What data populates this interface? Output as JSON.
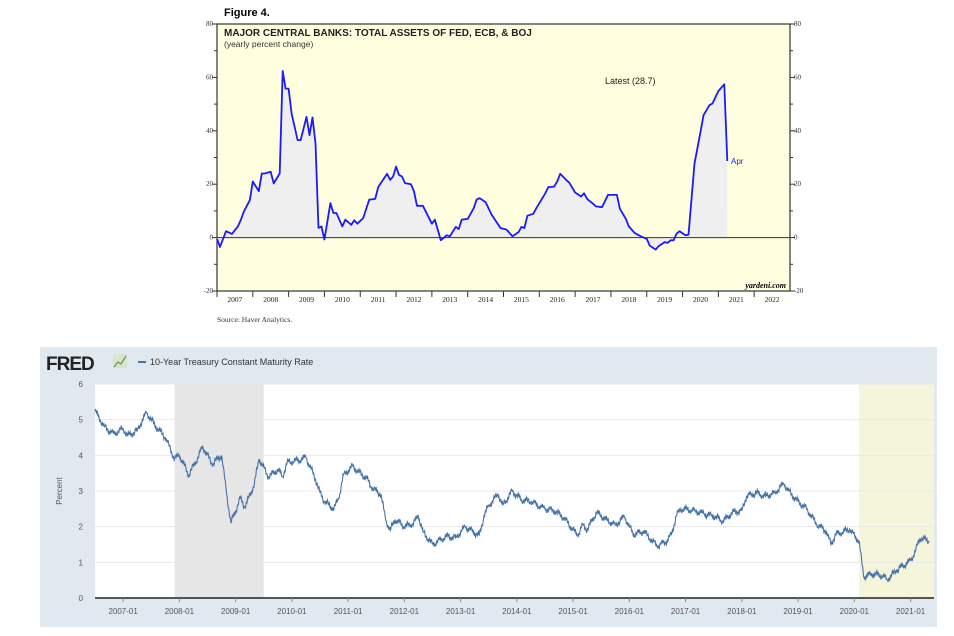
{
  "chart_data": [
    {
      "type": "area",
      "figure_label": "Figure 4.",
      "title": "MAJOR CENTRAL BANKS: TOTAL ASSETS OF FED, ECB, & BOJ",
      "subtitle": "(yearly percent change)",
      "annotation_latest": "Latest (28.7)",
      "annotation_end": "Apr",
      "watermark": "yardeni.com",
      "source": "Source: Haver Analytics.",
      "ylim": [
        -20,
        80
      ],
      "yticks": [
        -20,
        0,
        20,
        40,
        60,
        80
      ],
      "xlim": [
        "2007-01",
        "2023-01"
      ],
      "xtick_labels": [
        "2007",
        "2008",
        "2009",
        "2010",
        "2011",
        "2012",
        "2013",
        "2014",
        "2015",
        "2016",
        "2017",
        "2018",
        "2019",
        "2020",
        "2021",
        "2022"
      ],
      "grid": false,
      "colors": {
        "line": "#1a1aff",
        "fill": "#efefef",
        "background": "#ffffe0"
      },
      "points": [
        [
          "2007-01",
          -0.5
        ],
        [
          "2007-02",
          -3.5
        ],
        [
          "2007-04",
          2.4
        ],
        [
          "2007-06",
          1.4
        ],
        [
          "2007-08",
          4.2
        ],
        [
          "2007-09",
          6.7
        ],
        [
          "2007-10",
          9.8
        ],
        [
          "2007-12",
          14
        ],
        [
          "2008-01",
          21
        ],
        [
          "2008-03",
          17.4
        ],
        [
          "2008-04",
          24
        ],
        [
          "2008-05",
          24
        ],
        [
          "2008-07",
          24.7
        ],
        [
          "2008-08",
          20.3
        ],
        [
          "2008-10",
          24
        ],
        [
          "2008-11",
          62.4
        ],
        [
          "2008-12",
          55.8
        ],
        [
          "2009-01",
          55.8
        ],
        [
          "2009-02",
          46.5
        ],
        [
          "2009-04",
          36.5
        ],
        [
          "2009-05",
          36.5
        ],
        [
          "2009-07",
          45.2
        ],
        [
          "2009-08",
          38.4
        ],
        [
          "2009-09",
          45
        ],
        [
          "2009-10",
          35.3
        ],
        [
          "2009-11",
          3.6
        ],
        [
          "2009-12",
          4.2
        ],
        [
          "2010-01",
          -0.7
        ],
        [
          "2010-03",
          12.9
        ],
        [
          "2010-04",
          9.2
        ],
        [
          "2010-05",
          9.2
        ],
        [
          "2010-07",
          4.2
        ],
        [
          "2010-08",
          6.7
        ],
        [
          "2010-10",
          4.8
        ],
        [
          "2010-11",
          6.5
        ],
        [
          "2010-12",
          5.2
        ],
        [
          "2011-02",
          7.3
        ],
        [
          "2011-04",
          14.2
        ],
        [
          "2011-06",
          14.5
        ],
        [
          "2011-07",
          18.9
        ],
        [
          "2011-10",
          23.9
        ],
        [
          "2011-11",
          21.6
        ],
        [
          "2011-12",
          22.9
        ],
        [
          "2012-01",
          26.6
        ],
        [
          "2012-02",
          23.5
        ],
        [
          "2012-03",
          22.9
        ],
        [
          "2012-04",
          20.4
        ],
        [
          "2012-06",
          20
        ],
        [
          "2012-07",
          17.3
        ],
        [
          "2012-08",
          11.9
        ],
        [
          "2012-10",
          11.9
        ],
        [
          "2013-01",
          5.2
        ],
        [
          "2013-02",
          6.7
        ],
        [
          "2013-04",
          -1
        ],
        [
          "2013-06",
          0.9
        ],
        [
          "2013-07",
          0.5
        ],
        [
          "2013-09",
          4
        ],
        [
          "2013-10",
          3.2
        ],
        [
          "2013-11",
          6.7
        ],
        [
          "2014-01",
          7
        ],
        [
          "2014-03",
          11
        ],
        [
          "2014-04",
          14.2
        ],
        [
          "2014-05",
          14.8
        ],
        [
          "2014-07",
          13.3
        ],
        [
          "2014-09",
          8.6
        ],
        [
          "2014-12",
          3.6
        ],
        [
          "2015-02",
          3
        ],
        [
          "2015-04",
          0.5
        ],
        [
          "2015-06",
          2
        ],
        [
          "2015-07",
          4
        ],
        [
          "2015-08",
          3.6
        ],
        [
          "2015-09",
          8.2
        ],
        [
          "2015-11",
          8.9
        ],
        [
          "2015-12",
          11
        ],
        [
          "2016-03",
          16.6
        ],
        [
          "2016-04",
          18.9
        ],
        [
          "2016-06",
          19.1
        ],
        [
          "2016-07",
          21
        ],
        [
          "2016-08",
          23.9
        ],
        [
          "2016-10",
          21.6
        ],
        [
          "2016-11",
          20.6
        ],
        [
          "2017-01",
          16.9
        ],
        [
          "2017-03",
          15.4
        ],
        [
          "2017-04",
          16.6
        ],
        [
          "2017-05",
          14.5
        ],
        [
          "2017-07",
          12.7
        ],
        [
          "2017-08",
          11.7
        ],
        [
          "2017-10",
          11.4
        ],
        [
          "2017-12",
          16
        ],
        [
          "2018-03",
          16
        ],
        [
          "2018-04",
          10.8
        ],
        [
          "2018-06",
          7
        ],
        [
          "2018-07",
          4.2
        ],
        [
          "2018-09",
          1.7
        ],
        [
          "2018-11",
          0.5
        ],
        [
          "2019-01",
          -0.5
        ],
        [
          "2019-02",
          -3
        ],
        [
          "2019-04",
          -4.5
        ],
        [
          "2019-05",
          -3.2
        ],
        [
          "2019-07",
          -1.7
        ],
        [
          "2019-08",
          -2
        ],
        [
          "2019-09",
          -1
        ],
        [
          "2019-10",
          -1
        ],
        [
          "2019-11",
          1.5
        ],
        [
          "2019-12",
          2.4
        ],
        [
          "2020-02",
          0.9
        ],
        [
          "2020-03",
          1.1
        ],
        [
          "2020-05",
          27.8
        ],
        [
          "2020-07",
          39.6
        ],
        [
          "2020-08",
          45.8
        ],
        [
          "2020-10",
          49.6
        ],
        [
          "2020-11",
          50.2
        ],
        [
          "2021-01",
          54.9
        ],
        [
          "2021-03",
          57.4
        ],
        [
          "2021-04",
          28.7
        ]
      ]
    },
    {
      "type": "line",
      "logo": "FRED",
      "legend": "10-Year Treasury Constant Maturity Rate",
      "ylabel": "Percent",
      "ylim": [
        0,
        6
      ],
      "yticks": [
        0,
        1,
        2,
        3,
        4,
        5,
        6
      ],
      "xtick_labels": [
        "2007-01",
        "2008-01",
        "2009-01",
        "2010-01",
        "2011-01",
        "2012-01",
        "2013-01",
        "2014-01",
        "2015-01",
        "2016-01",
        "2017-01",
        "2018-01",
        "2019-01",
        "2020-01",
        "2021-01"
      ],
      "xlim": [
        "2006-07",
        "2021-05"
      ],
      "grid": true,
      "recessions": [
        [
          "2007-12",
          "2009-06"
        ],
        [
          "2020-02",
          "2021-05"
        ]
      ],
      "colors": {
        "line": "#4572a7",
        "recession_1": "#e6e6e6",
        "recession_2": "#f5f5dc",
        "frame": "#e1e9f0"
      },
      "series": [
        {
          "name": "10-Year Treasury Constant Maturity Rate",
          "points": [
            [
              "2006-07",
              5.25
            ],
            [
              "2006-09",
              4.8
            ],
            [
              "2006-11",
              4.6
            ],
            [
              "2007-01",
              4.75
            ],
            [
              "2007-02",
              4.55
            ],
            [
              "2007-04",
              4.7
            ],
            [
              "2007-06",
              5.2
            ],
            [
              "2007-08",
              4.8
            ],
            [
              "2007-10",
              4.5
            ],
            [
              "2007-12",
              3.9
            ],
            [
              "2008-01",
              4.0
            ],
            [
              "2008-03",
              3.45
            ],
            [
              "2008-05",
              3.95
            ],
            [
              "2008-06",
              4.25
            ],
            [
              "2008-08",
              3.75
            ],
            [
              "2008-10",
              4.0
            ],
            [
              "2008-11",
              3.0
            ],
            [
              "2008-12",
              2.1
            ],
            [
              "2009-02",
              2.8
            ],
            [
              "2009-03",
              2.55
            ],
            [
              "2009-05",
              3.2
            ],
            [
              "2009-06",
              3.9
            ],
            [
              "2009-08",
              3.4
            ],
            [
              "2009-10",
              3.6
            ],
            [
              "2009-11",
              3.4
            ],
            [
              "2009-12",
              3.8
            ],
            [
              "2010-03",
              3.88
            ],
            [
              "2010-04",
              3.95
            ],
            [
              "2010-06",
              3.35
            ],
            [
              "2010-07",
              2.95
            ],
            [
              "2010-08",
              2.7
            ],
            [
              "2010-10",
              2.5
            ],
            [
              "2010-11",
              2.8
            ],
            [
              "2010-12",
              3.45
            ],
            [
              "2011-02",
              3.7
            ],
            [
              "2011-03",
              3.55
            ],
            [
              "2011-05",
              3.35
            ],
            [
              "2011-06",
              3.1
            ],
            [
              "2011-08",
              2.9
            ],
            [
              "2011-09",
              2.2
            ],
            [
              "2011-10",
              1.9
            ],
            [
              "2011-11",
              2.2
            ],
            [
              "2012-01",
              2.0
            ],
            [
              "2012-03",
              2.1
            ],
            [
              "2012-04",
              2.3
            ],
            [
              "2012-05",
              1.85
            ],
            [
              "2012-07",
              1.5
            ],
            [
              "2012-10",
              1.73
            ],
            [
              "2012-12",
              1.7
            ],
            [
              "2013-02",
              2.0
            ],
            [
              "2013-03",
              1.92
            ],
            [
              "2013-05",
              1.75
            ],
            [
              "2013-06",
              2.3
            ],
            [
              "2013-07",
              2.6
            ],
            [
              "2013-09",
              2.9
            ],
            [
              "2013-10",
              2.6
            ],
            [
              "2013-12",
              3.0
            ],
            [
              "2014-02",
              2.75
            ],
            [
              "2014-04",
              2.7
            ],
            [
              "2014-07",
              2.5
            ],
            [
              "2014-09",
              2.45
            ],
            [
              "2014-11",
              2.25
            ],
            [
              "2015-02",
              1.75
            ],
            [
              "2015-03",
              2.05
            ],
            [
              "2015-04",
              1.92
            ],
            [
              "2015-06",
              2.4
            ],
            [
              "2015-08",
              2.2
            ],
            [
              "2015-10",
              2.05
            ],
            [
              "2015-12",
              2.28
            ],
            [
              "2016-01",
              2.0
            ],
            [
              "2016-02",
              1.78
            ],
            [
              "2016-04",
              1.87
            ],
            [
              "2016-07",
              1.45
            ],
            [
              "2016-09",
              1.6
            ],
            [
              "2016-10",
              1.78
            ],
            [
              "2016-11",
              2.3
            ],
            [
              "2016-12",
              2.5
            ],
            [
              "2017-03",
              2.45
            ],
            [
              "2017-05",
              2.35
            ],
            [
              "2017-07",
              2.3
            ],
            [
              "2017-09",
              2.15
            ],
            [
              "2017-11",
              2.4
            ],
            [
              "2018-01",
              2.45
            ],
            [
              "2018-02",
              2.85
            ],
            [
              "2018-04",
              2.95
            ],
            [
              "2018-06",
              2.85
            ],
            [
              "2018-08",
              2.95
            ],
            [
              "2018-10",
              3.2
            ],
            [
              "2018-11",
              3.0
            ],
            [
              "2019-01",
              2.7
            ],
            [
              "2019-03",
              2.48
            ],
            [
              "2019-05",
              2.06
            ],
            [
              "2019-07",
              1.87
            ],
            [
              "2019-08",
              1.5
            ],
            [
              "2019-09",
              1.78
            ],
            [
              "2019-12",
              1.92
            ],
            [
              "2020-02",
              1.59
            ],
            [
              "2020-03",
              0.6
            ],
            [
              "2020-05",
              0.68
            ],
            [
              "2020-07",
              0.62
            ],
            [
              "2020-08",
              0.52
            ],
            [
              "2020-10",
              0.77
            ],
            [
              "2021-01",
              1.05
            ],
            [
              "2021-02",
              1.3
            ],
            [
              "2021-03",
              1.68
            ],
            [
              "2021-05",
              1.6
            ]
          ]
        }
      ]
    }
  ]
}
